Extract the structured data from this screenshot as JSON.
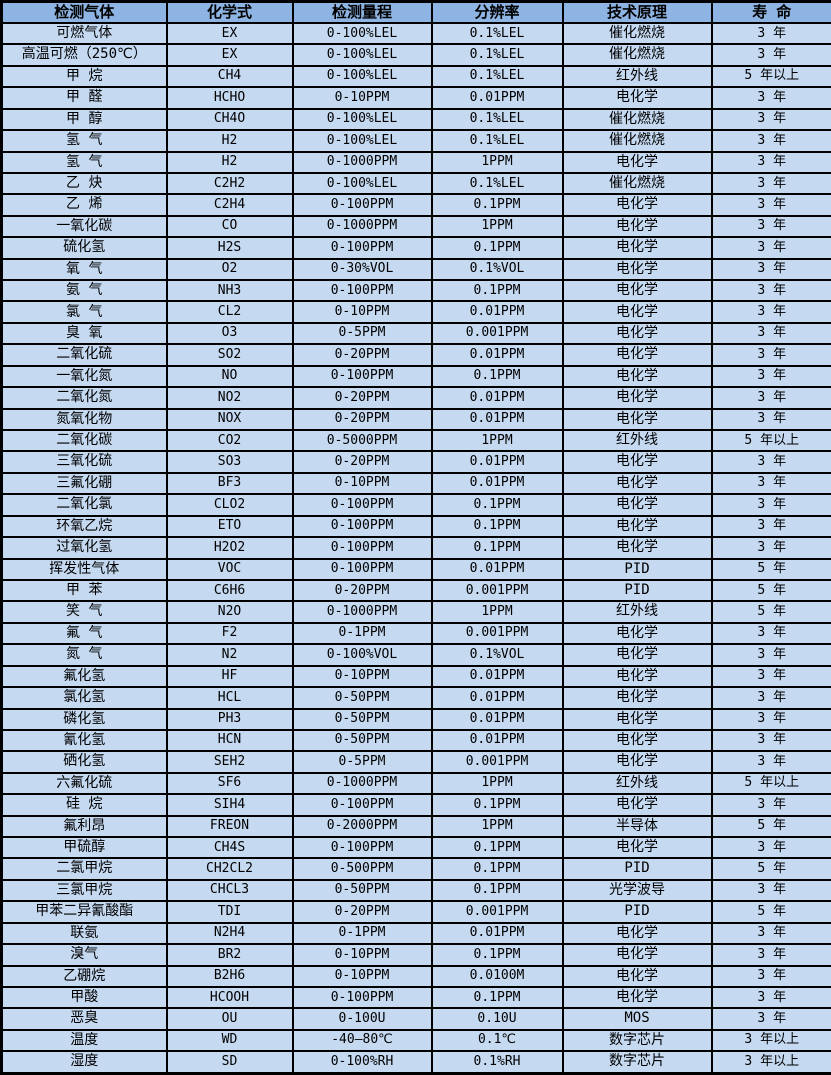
{
  "colors": {
    "header_bg": "#8DB4E2",
    "row_bg": "#C5D9F1",
    "border": "#000000",
    "text": "#000000"
  },
  "table": {
    "headers": [
      "检测气体",
      "化学式",
      "检测量程",
      "分辨率",
      "技术原理",
      "寿 命"
    ],
    "rows": [
      [
        "可燃气体",
        "EX",
        "0-100%LEL",
        "0.1%LEL",
        "催化燃烧",
        "3 年"
      ],
      [
        "高温可燃（250℃）",
        "EX",
        "0-100%LEL",
        "0.1%LEL",
        "催化燃烧",
        "3 年"
      ],
      [
        "甲 烷",
        "CH4",
        "0-100%LEL",
        "0.1%LEL",
        "红外线",
        "5 年以上"
      ],
      [
        "甲 醛",
        "HCHO",
        "0-10PPM",
        "0.01PPM",
        "电化学",
        "3 年"
      ],
      [
        "甲 醇",
        "CH4O",
        "0-100%LEL",
        "0.1%LEL",
        "催化燃烧",
        "3 年"
      ],
      [
        "氢 气",
        "H2",
        "0-100%LEL",
        "0.1%LEL",
        "催化燃烧",
        "3 年"
      ],
      [
        "氢 气",
        "H2",
        "0-1000PPM",
        "1PPM",
        "电化学",
        "3 年"
      ],
      [
        "乙 炔",
        "C2H2",
        "0-100%LEL",
        "0.1%LEL",
        "催化燃烧",
        "3 年"
      ],
      [
        "乙 烯",
        "C2H4",
        "0-100PPM",
        "0.1PPM",
        "电化学",
        "3 年"
      ],
      [
        "一氧化碳",
        "CO",
        "0-1000PPM",
        "1PPM",
        "电化学",
        "3 年"
      ],
      [
        "硫化氢",
        "H2S",
        "0-100PPM",
        "0.1PPM",
        "电化学",
        "3 年"
      ],
      [
        "氧 气",
        "O2",
        "0-30%VOL",
        "0.1%VOL",
        "电化学",
        "3 年"
      ],
      [
        "氨 气",
        "NH3",
        "0-100PPM",
        "0.1PPM",
        "电化学",
        "3 年"
      ],
      [
        "氯 气",
        "CL2",
        "0-10PPM",
        "0.01PPM",
        "电化学",
        "3 年"
      ],
      [
        "臭 氧",
        "O3",
        "0-5PPM",
        "0.001PPM",
        "电化学",
        "3 年"
      ],
      [
        "二氧化硫",
        "SO2",
        "0-20PPM",
        "0.01PPM",
        "电化学",
        "3 年"
      ],
      [
        "一氧化氮",
        "NO",
        "0-100PPM",
        "0.1PPM",
        "电化学",
        "3 年"
      ],
      [
        "二氧化氮",
        "NO2",
        "0-20PPM",
        "0.01PPM",
        "电化学",
        "3 年"
      ],
      [
        "氮氧化物",
        "NOX",
        "0-20PPM",
        "0.01PPM",
        "电化学",
        "3 年"
      ],
      [
        "二氧化碳",
        "CO2",
        "0-5000PPM",
        "1PPM",
        "红外线",
        "5 年以上"
      ],
      [
        "三氧化硫",
        "SO3",
        "0-20PPM",
        "0.01PPM",
        "电化学",
        "3 年"
      ],
      [
        "三氟化硼",
        "BF3",
        "0-10PPM",
        "0.01PPM",
        "电化学",
        "3 年"
      ],
      [
        "二氧化氯",
        "CLO2",
        "0-100PPM",
        "0.1PPM",
        "电化学",
        "3 年"
      ],
      [
        "环氧乙烷",
        "ETO",
        "0-100PPM",
        "0.1PPM",
        "电化学",
        "3 年"
      ],
      [
        "过氧化氢",
        "H2O2",
        "0-100PPM",
        "0.1PPM",
        "电化学",
        "3 年"
      ],
      [
        "挥发性气体",
        "VOC",
        "0-100PPM",
        "0.01PPM",
        "PID",
        "5 年"
      ],
      [
        "甲 苯",
        "C6H6",
        "0-20PPM",
        "0.001PPM",
        "PID",
        "5 年"
      ],
      [
        "笑 气",
        "N2O",
        "0-1000PPM",
        "1PPM",
        "红外线",
        "5 年"
      ],
      [
        "氟 气",
        "F2",
        "0-1PPM",
        "0.001PPM",
        "电化学",
        "3 年"
      ],
      [
        "氮 气",
        "N2",
        "0-100%VOL",
        "0.1%VOL",
        "电化学",
        "3 年"
      ],
      [
        "氟化氢",
        "HF",
        "0-10PPM",
        "0.01PPM",
        "电化学",
        "3 年"
      ],
      [
        "氯化氢",
        "HCL",
        "0-50PPM",
        "0.01PPM",
        "电化学",
        "3 年"
      ],
      [
        "磷化氢",
        "PH3",
        "0-50PPM",
        "0.01PPM",
        "电化学",
        "3 年"
      ],
      [
        "氰化氢",
        "HCN",
        "0-50PPM",
        "0.01PPM",
        "电化学",
        "3 年"
      ],
      [
        "硒化氢",
        "SEH2",
        "0-5PPM",
        "0.001PPM",
        "电化学",
        "3 年"
      ],
      [
        "六氟化硫",
        "SF6",
        "0-1000PPM",
        "1PPM",
        "红外线",
        "5 年以上"
      ],
      [
        "硅 烷",
        "SIH4",
        "0-100PPM",
        "0.1PPM",
        "电化学",
        "3 年"
      ],
      [
        "氟利昂",
        "FREON",
        "0-2000PPM",
        "1PPM",
        "半导体",
        "5 年"
      ],
      [
        "甲硫醇",
        "CH4S",
        "0-100PPM",
        "0.1PPM",
        "电化学",
        "3 年"
      ],
      [
        "二氯甲烷",
        "CH2CL2",
        "0-500PPM",
        "0.1PPM",
        "PID",
        "5 年"
      ],
      [
        "三氯甲烷",
        "CHCL3",
        "0-50PPM",
        "0.1PPM",
        "光学波导",
        "3 年"
      ],
      [
        "甲苯二异氰酸酯",
        "TDI",
        "0-20PPM",
        "0.001PPM",
        "PID",
        "5 年"
      ],
      [
        "联氨",
        "N2H4",
        "0-1PPM",
        "0.01PPM",
        "电化学",
        "3 年"
      ],
      [
        "溴气",
        "BR2",
        "0-10PPM",
        "0.1PPM",
        "电化学",
        "3 年"
      ],
      [
        "乙硼烷",
        "B2H6",
        "0-10PPM",
        "0.0100M",
        "电化学",
        "3 年"
      ],
      [
        "甲酸",
        "HCOOH",
        "0-100PPM",
        "0.1PPM",
        "电化学",
        "3 年"
      ],
      [
        "恶臭",
        "OU",
        "0-100U",
        "0.10U",
        "MOS",
        "3 年"
      ],
      [
        "温度",
        "WD",
        "-40—80℃",
        "0.1℃",
        "数字芯片",
        "3 年以上"
      ],
      [
        "湿度",
        "SD",
        "0-100%RH",
        "0.1%RH",
        "数字芯片",
        "3 年以上"
      ]
    ]
  }
}
